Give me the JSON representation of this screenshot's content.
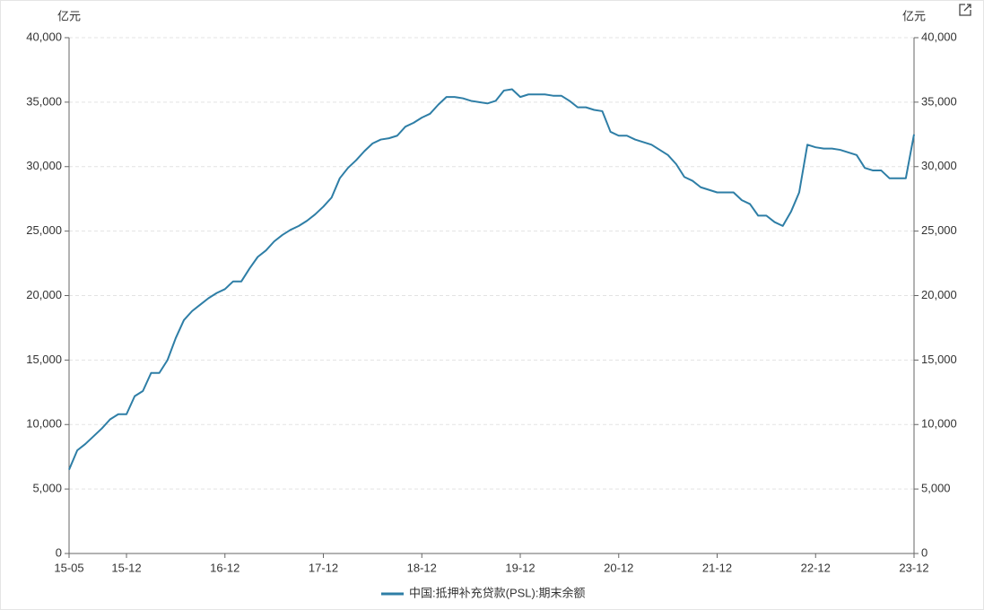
{
  "chart_data": {
    "type": "line",
    "y_unit": "亿元",
    "y2_unit": "亿元",
    "categories": [
      "15-05",
      null,
      null,
      null,
      null,
      null,
      null,
      "15-12",
      null,
      null,
      null,
      null,
      null,
      null,
      null,
      null,
      null,
      null,
      null,
      "16-12",
      null,
      null,
      null,
      null,
      null,
      null,
      null,
      null,
      null,
      null,
      null,
      "17-12",
      null,
      null,
      null,
      null,
      null,
      null,
      null,
      null,
      null,
      null,
      null,
      "18-12",
      null,
      null,
      null,
      null,
      null,
      null,
      null,
      null,
      null,
      null,
      null,
      "19-12",
      null,
      null,
      null,
      null,
      null,
      null,
      null,
      null,
      null,
      null,
      null,
      "20-12",
      null,
      null,
      null,
      null,
      null,
      null,
      null,
      null,
      null,
      null,
      null,
      "21-12",
      null,
      null,
      null,
      null,
      null,
      null,
      null,
      null,
      null,
      null,
      null,
      "22-12",
      null,
      null,
      null,
      null,
      null,
      null,
      null,
      null,
      null,
      null,
      null,
      "23-12"
    ],
    "series": [
      {
        "name": "中国:抵押补充贷款(PSL):期末余额",
        "color": "#2e7ea6",
        "values": [
          6500,
          8000,
          8500,
          9100,
          9700,
          10400,
          10800,
          10800,
          12200,
          12600,
          14000,
          14000,
          15000,
          16700,
          18100,
          18800,
          19300,
          19800,
          20200,
          20500,
          21100,
          21100,
          22100,
          23000,
          23500,
          24200,
          24700,
          25100,
          25400,
          25800,
          26300,
          26900,
          27600,
          29100,
          29900,
          30500,
          31200,
          31800,
          32100,
          32200,
          32400,
          33100,
          33400,
          33800,
          34100,
          34800,
          35400,
          35400,
          35300,
          35100,
          35000,
          34900,
          35100,
          35900,
          36000,
          35400,
          35600,
          35600,
          35600,
          35500,
          35500,
          35100,
          34600,
          34600,
          34400,
          34300,
          32700,
          32400,
          32400,
          32100,
          31900,
          31700,
          31300,
          30900,
          30200,
          29200,
          28900,
          28400,
          28200,
          28000,
          28000,
          28000,
          27400,
          27100,
          26200,
          26200,
          25700,
          25400,
          26500,
          28000,
          31700,
          31500,
          31400,
          31400,
          31300,
          31100,
          30900,
          29900,
          29700,
          29700,
          29100,
          29100,
          29100,
          32500
        ]
      }
    ],
    "ylim": [
      0,
      40000
    ],
    "yticks": [
      0,
      {
        "value": 5000,
        "label": "5,000"
      },
      {
        "value": 10000,
        "label": "10,000"
      },
      {
        "value": 15000,
        "label": "15,000"
      },
      {
        "value": 20000,
        "label": "20,000"
      },
      {
        "value": 25000,
        "label": "25,000"
      },
      {
        "value": 30000,
        "label": "30,000"
      },
      {
        "value": 35000,
        "label": "35,000"
      },
      {
        "value": 40000,
        "label": "40,000"
      }
    ],
    "y2lim": [
      0,
      40000
    ],
    "y2ticks": [
      0,
      {
        "value": 5000,
        "label": "5,000"
      },
      {
        "value": 10000,
        "label": "10,000"
      },
      {
        "value": 15000,
        "label": "15,000"
      },
      {
        "value": 20000,
        "label": "20,000"
      },
      {
        "value": 25000,
        "label": "25,000"
      },
      {
        "value": 30000,
        "label": "30,000"
      },
      {
        "value": 35000,
        "label": "35,000"
      },
      {
        "value": 40000,
        "label": "40,000"
      }
    ],
    "grid": true
  }
}
